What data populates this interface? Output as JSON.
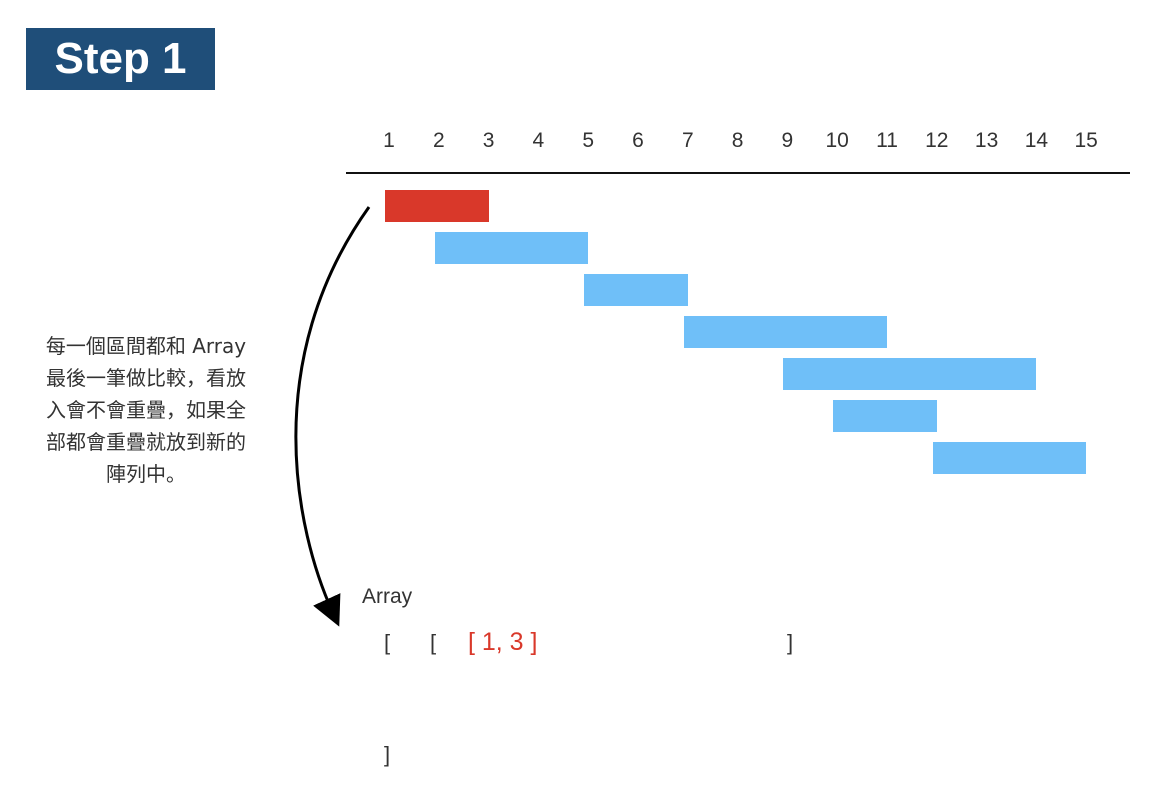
{
  "step_title": "Step 1",
  "axis": {
    "ticks": [
      "1",
      "2",
      "3",
      "4",
      "5",
      "6",
      "7",
      "8",
      "9",
      "10",
      "11",
      "12",
      "13",
      "14",
      "15"
    ]
  },
  "intervals": [
    {
      "start": 1,
      "end": 3,
      "color": "#d9382a",
      "state": "current"
    },
    {
      "start": 2,
      "end": 5,
      "color": "#6fbff8",
      "state": "pending"
    },
    {
      "start": 5,
      "end": 7,
      "color": "#6fbff8",
      "state": "pending"
    },
    {
      "start": 7,
      "end": 11,
      "color": "#6fbff8",
      "state": "pending"
    },
    {
      "start": 9,
      "end": 14,
      "color": "#6fbff8",
      "state": "pending"
    },
    {
      "start": 10,
      "end": 12,
      "color": "#6fbff8",
      "state": "pending"
    },
    {
      "start": 12,
      "end": 15,
      "color": "#6fbff8",
      "state": "pending"
    }
  ],
  "caption_lines": [
    "每一個區間都和 Array",
    "最後一筆做比較，看放",
    "入會不會重疊，如果全",
    "部都會重疊就放到新的",
    "陣列中。"
  ],
  "array_section": {
    "label": "Array",
    "outer_open": "[",
    "inner_open": "[",
    "current_entry": "[ 1, 3 ]",
    "inner_close": "]",
    "outer_close": "]"
  },
  "colors": {
    "badge": "#1f4e79",
    "current": "#d9382a",
    "pending": "#6fbff8"
  }
}
